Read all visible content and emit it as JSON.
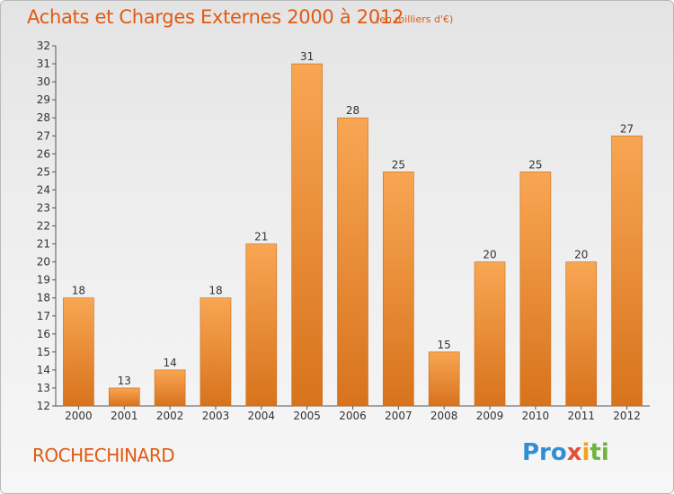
{
  "chart_data": {
    "type": "bar",
    "title": "Achats et Charges Externes 2000 à 2012",
    "subtitle": "(en milliers d'€)",
    "categories": [
      "2000",
      "2001",
      "2002",
      "2003",
      "2004",
      "2005",
      "2006",
      "2007",
      "2008",
      "2009",
      "2010",
      "2011",
      "2012"
    ],
    "values": [
      18,
      13,
      14,
      18,
      21,
      31,
      28,
      25,
      15,
      20,
      25,
      20,
      27
    ],
    "ylim": [
      12,
      32
    ],
    "yticks": [
      12,
      13,
      14,
      15,
      16,
      17,
      18,
      19,
      20,
      21,
      22,
      23,
      24,
      25,
      26,
      27,
      28,
      29,
      30,
      31,
      32
    ],
    "grid": false,
    "bar_color": "#f07f1e"
  },
  "footer": {
    "town": "ROCHECHINARD",
    "logo": [
      "Pro",
      "x",
      "i",
      "ti"
    ]
  }
}
